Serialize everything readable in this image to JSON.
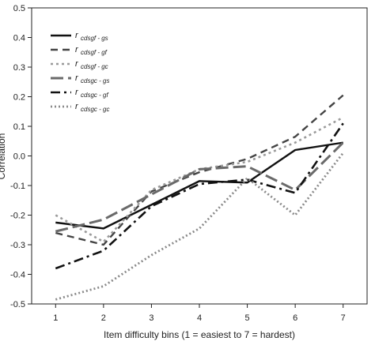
{
  "chart_data": {
    "type": "line",
    "title": "",
    "xlabel": "Item difficulty bins (1 = easiest to 7 = hardest)",
    "ylabel": "Correlation",
    "x": [
      1,
      2,
      3,
      4,
      5,
      6,
      7
    ],
    "xlim": [
      0.5,
      7.5
    ],
    "ylim": [
      -0.5,
      0.5
    ],
    "x_ticks": [
      "1",
      "2",
      "3",
      "4",
      "5",
      "6",
      "7"
    ],
    "y_ticks": [
      "-0.5",
      "-0.4",
      "-0.3",
      "-0.2",
      "-0.1",
      "0.0",
      "0.1",
      "0.2",
      "0.3",
      "0.4",
      "0.5"
    ],
    "y_tick_values": [
      -0.5,
      -0.4,
      -0.3,
      -0.2,
      -0.1,
      0.0,
      0.1,
      0.2,
      0.3,
      0.4,
      0.5
    ],
    "grid": false,
    "legend_position": "top-left",
    "series": [
      {
        "name": "r",
        "name_sub": "cdsgf - gs",
        "color": "#111111",
        "dash": "solid",
        "values": [
          -0.225,
          -0.245,
          -0.165,
          -0.085,
          -0.09,
          0.02,
          0.045
        ]
      },
      {
        "name": "r",
        "name_sub": "cdsgf - gf",
        "color": "#444444",
        "dash": "dash",
        "values": [
          -0.26,
          -0.3,
          -0.12,
          -0.055,
          -0.01,
          0.065,
          0.205
        ]
      },
      {
        "name": "r",
        "name_sub": "cdsgf - gc",
        "color": "#9a9a9a",
        "dash": "dot",
        "values": [
          -0.2,
          -0.29,
          -0.115,
          -0.045,
          -0.02,
          0.045,
          0.13
        ]
      },
      {
        "name": "r",
        "name_sub": "cdsgc - gs",
        "color": "#6a6a6a",
        "dash": "longdash",
        "values": [
          -0.255,
          -0.215,
          -0.13,
          -0.045,
          -0.035,
          -0.115,
          0.045
        ]
      },
      {
        "name": "r",
        "name_sub": "cdsgc - gf",
        "color": "#111111",
        "dash": "dashdot",
        "values": [
          -0.38,
          -0.32,
          -0.17,
          -0.095,
          -0.08,
          -0.125,
          0.11
        ]
      },
      {
        "name": "r",
        "name_sub": "cdsgc - gc",
        "color": "#8a8a8a",
        "dash": "dotted",
        "values": [
          -0.485,
          -0.44,
          -0.335,
          -0.245,
          -0.075,
          -0.2,
          0.01
        ]
      }
    ]
  }
}
